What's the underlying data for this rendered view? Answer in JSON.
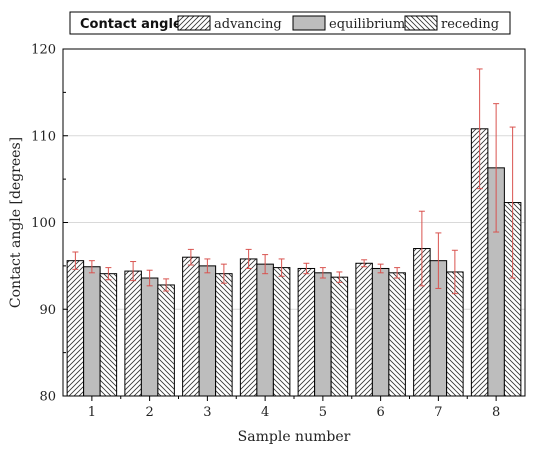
{
  "chart_data": {
    "type": "bar",
    "xlabel": "Sample number",
    "ylabel": "Contact angle [degrees]",
    "ylim": [
      80,
      120
    ],
    "yticks": [
      80,
      90,
      100,
      110,
      120
    ],
    "grid": true,
    "legend_position": "top",
    "legend_title": "Contact angle:",
    "categories": [
      "1",
      "2",
      "3",
      "4",
      "5",
      "6",
      "7",
      "8"
    ],
    "series": [
      {
        "name": "advancing",
        "fill": "hatch-forward",
        "values": [
          95.6,
          94.4,
          96.0,
          95.8,
          94.7,
          95.3,
          97.0,
          110.8
        ],
        "errors": [
          1.0,
          1.1,
          0.9,
          1.1,
          0.6,
          0.4,
          4.3,
          6.9
        ]
      },
      {
        "name": "equilibrium",
        "fill": "solid-gray",
        "values": [
          94.9,
          93.6,
          95.0,
          95.2,
          94.2,
          94.7,
          95.6,
          106.3
        ],
        "errors": [
          0.7,
          0.9,
          0.8,
          1.1,
          0.6,
          0.5,
          3.2,
          7.4
        ]
      },
      {
        "name": "receding",
        "fill": "hatch-back",
        "values": [
          94.1,
          92.8,
          94.1,
          94.8,
          93.7,
          94.2,
          94.3,
          102.3
        ],
        "errors": [
          0.7,
          0.7,
          1.1,
          1.0,
          0.6,
          0.6,
          2.5,
          8.7
        ]
      }
    ]
  },
  "colors": {
    "error_bar": "#d9534f",
    "bar_gray": "#bdbdbd",
    "grid": "#d9d9d9",
    "axis": "#000000"
  }
}
